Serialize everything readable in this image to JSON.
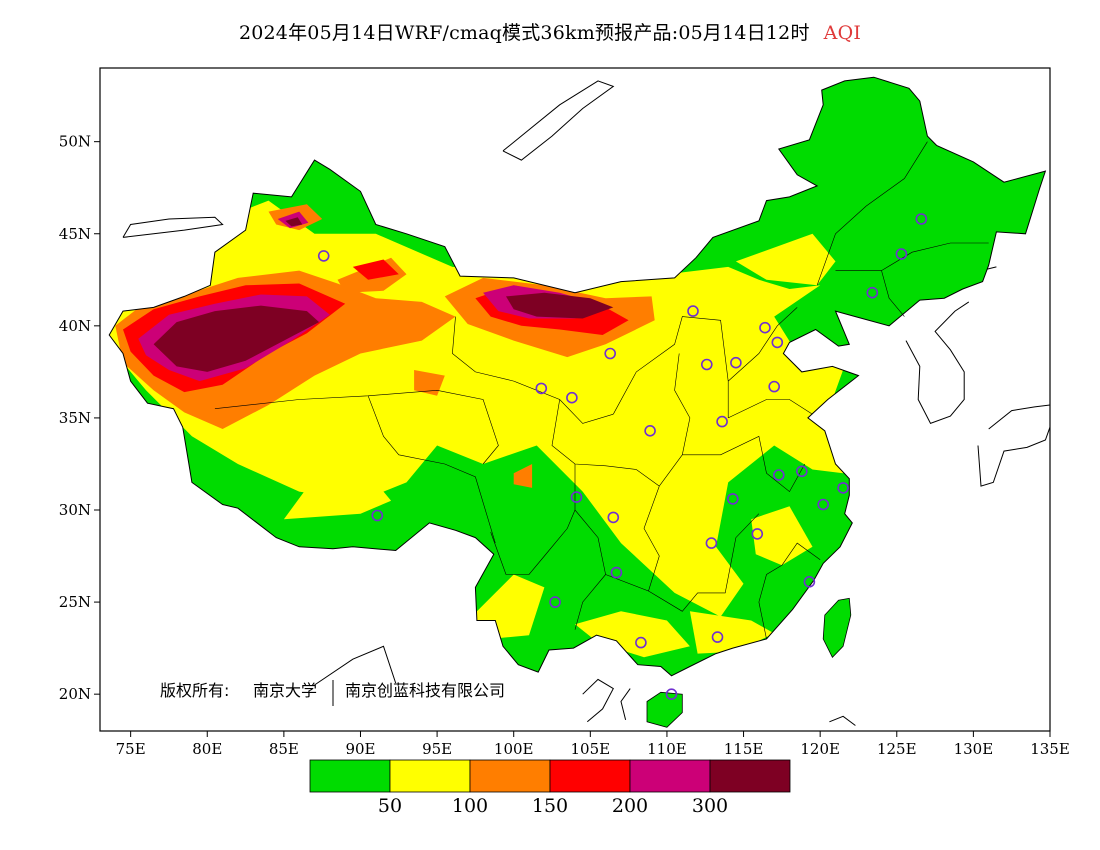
{
  "title": {
    "main": "2024年05月14日WRF/cmaq模式36km预报产品:05月14日12时",
    "variable": "AQI",
    "variable_color": "#e03a3a"
  },
  "axes": {
    "lon_range": [
      73,
      135
    ],
    "lat_range": [
      18,
      54
    ],
    "x_ticks": [
      {
        "value": 75,
        "label": "75E"
      },
      {
        "value": 80,
        "label": "80E"
      },
      {
        "value": 85,
        "label": "85E"
      },
      {
        "value": 90,
        "label": "90E"
      },
      {
        "value": 95,
        "label": "95E"
      },
      {
        "value": 100,
        "label": "100E"
      },
      {
        "value": 105,
        "label": "105E"
      },
      {
        "value": 110,
        "label": "110E"
      },
      {
        "value": 115,
        "label": "115E"
      },
      {
        "value": 120,
        "label": "120E"
      },
      {
        "value": 125,
        "label": "125E"
      },
      {
        "value": 130,
        "label": "130E"
      },
      {
        "value": 135,
        "label": "135E"
      }
    ],
    "y_ticks": [
      {
        "value": 20,
        "label": "20N"
      },
      {
        "value": 25,
        "label": "25N"
      },
      {
        "value": 30,
        "label": "30N"
      },
      {
        "value": 35,
        "label": "35N"
      },
      {
        "value": 40,
        "label": "40N"
      },
      {
        "value": 45,
        "label": "45N"
      },
      {
        "value": 50,
        "label": "50N"
      }
    ]
  },
  "copyright": {
    "prefix": "版权所有:",
    "org1": "南京大学",
    "org2": "南京创蓝科技有限公司"
  },
  "legend": {
    "colors": [
      "#00dc00",
      "#ffff00",
      "#ff7e00",
      "#ff0000",
      "#cc0077",
      "#7e0023"
    ],
    "thresholds": [
      "50",
      "100",
      "150",
      "200",
      "300"
    ]
  },
  "palette": {
    "good": "#00dc00",
    "moderate": "#ffff00",
    "usg": "#ff7e00",
    "unhealthy": "#ff0000",
    "very_unhealthy": "#cc0077",
    "hazardous": "#7e0023",
    "station_marker": "#7030d0"
  },
  "stations": [
    {
      "lon": 87.6,
      "lat": 43.8
    },
    {
      "lon": 91.1,
      "lat": 29.7
    },
    {
      "lon": 101.8,
      "lat": 36.6
    },
    {
      "lon": 103.8,
      "lat": 36.1
    },
    {
      "lon": 106.3,
      "lat": 38.5
    },
    {
      "lon": 104.1,
      "lat": 30.7
    },
    {
      "lon": 106.5,
      "lat": 29.6
    },
    {
      "lon": 106.7,
      "lat": 26.6
    },
    {
      "lon": 102.7,
      "lat": 25.0
    },
    {
      "lon": 108.9,
      "lat": 34.3
    },
    {
      "lon": 111.7,
      "lat": 40.8
    },
    {
      "lon": 112.6,
      "lat": 37.9
    },
    {
      "lon": 114.5,
      "lat": 38.0
    },
    {
      "lon": 116.4,
      "lat": 39.9
    },
    {
      "lon": 117.2,
      "lat": 39.1
    },
    {
      "lon": 117.0,
      "lat": 36.7
    },
    {
      "lon": 113.6,
      "lat": 34.8
    },
    {
      "lon": 114.3,
      "lat": 30.6
    },
    {
      "lon": 112.9,
      "lat": 28.2
    },
    {
      "lon": 115.9,
      "lat": 28.7
    },
    {
      "lon": 117.3,
      "lat": 31.9
    },
    {
      "lon": 118.8,
      "lat": 32.1
    },
    {
      "lon": 120.2,
      "lat": 30.3
    },
    {
      "lon": 121.5,
      "lat": 31.2
    },
    {
      "lon": 119.3,
      "lat": 26.1
    },
    {
      "lon": 113.3,
      "lat": 23.1
    },
    {
      "lon": 108.3,
      "lat": 22.8
    },
    {
      "lon": 110.3,
      "lat": 20.0
    },
    {
      "lon": 123.4,
      "lat": 41.8
    },
    {
      "lon": 125.3,
      "lat": 43.9
    },
    {
      "lon": 126.6,
      "lat": 45.8
    }
  ]
}
